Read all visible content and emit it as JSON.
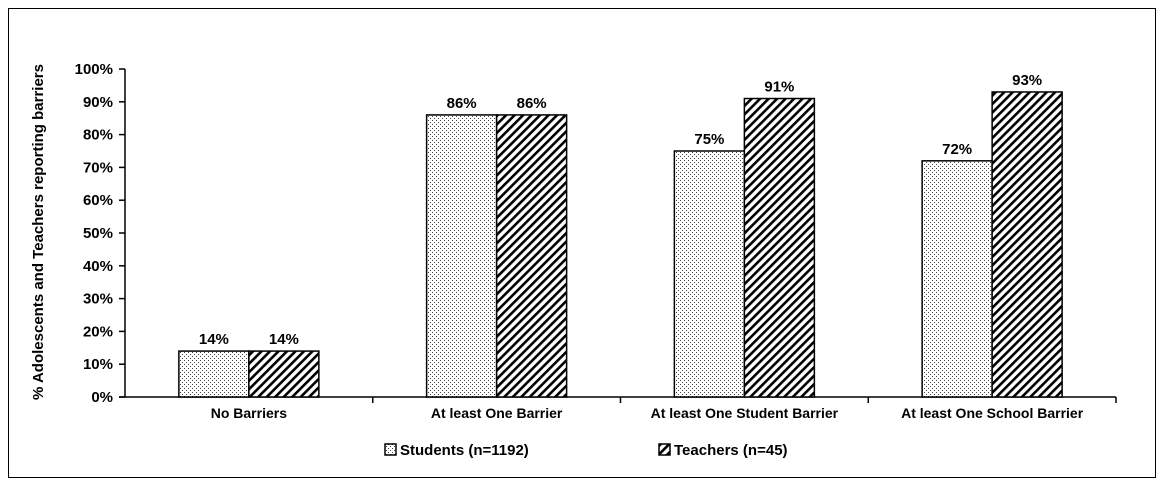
{
  "chart_data": {
    "type": "bar",
    "ylabel": "% Adolescents and Teachers reporting barriers",
    "xlabel": "",
    "ylim": [
      0,
      100
    ],
    "yticks": [
      "0%",
      "10%",
      "20%",
      "30%",
      "40%",
      "50%",
      "60%",
      "70%",
      "80%",
      "90%",
      "100%"
    ],
    "categories": [
      "No Barriers",
      "At least One Barrier",
      "At least One Student Barrier",
      "At least One School Barrier"
    ],
    "series": [
      {
        "name": "Students (n=1192)",
        "values": [
          14,
          86,
          75,
          72
        ],
        "labels": [
          "14%",
          "86%",
          "75%",
          "72%"
        ],
        "pattern": "dots"
      },
      {
        "name": "Teachers (n=45)",
        "values": [
          14,
          86,
          91,
          93
        ],
        "labels": [
          "14%",
          "86%",
          "91%",
          "93%"
        ],
        "pattern": "hatch"
      }
    ],
    "grid": false,
    "legend_position": "bottom"
  }
}
